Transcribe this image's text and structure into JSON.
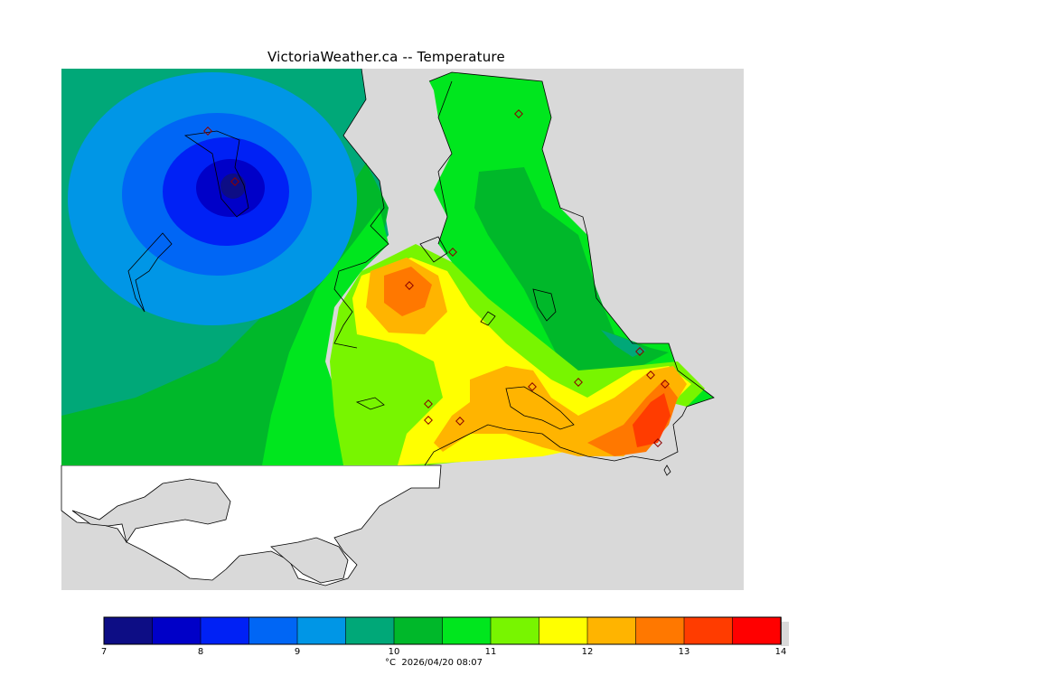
{
  "title": "VictoriaWeather.ca -- Temperature",
  "legend": {
    "unit": "°C",
    "timestamp": "2026/04/20 08:07",
    "ticks": [
      "7",
      "8",
      "9",
      "10",
      "11",
      "12",
      "13",
      "14"
    ],
    "levels": [
      7,
      7.5,
      8,
      8.5,
      9,
      9.5,
      10,
      10.5,
      11,
      11.5,
      12,
      12.5,
      13,
      13.5,
      14
    ],
    "colors": [
      "#0d0d85",
      "#0000c8",
      "#0021f5",
      "#0066f5",
      "#0096e6",
      "#00a878",
      "#00b82a",
      "#00e61e",
      "#78f500",
      "#ffff00",
      "#ffb400",
      "#ff7800",
      "#ff3c00",
      "#ff0000"
    ]
  },
  "map": {
    "land_color": "#d9d9d9",
    "water_color": "#ffffff",
    "coastline_color": "#000000",
    "station_marker_color": "#ff6060"
  }
}
